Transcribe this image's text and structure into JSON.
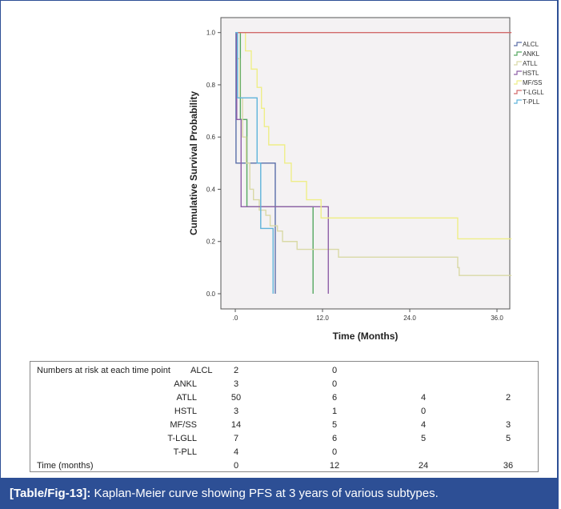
{
  "chart_data": {
    "type": "line",
    "title": "",
    "xlabel": "Time (Months)",
    "ylabel": "Cumulative Survival Probability",
    "xlim": [
      0,
      38
    ],
    "ylim": [
      0,
      1
    ],
    "xticks": [
      ".0",
      "12.0",
      "24.0",
      "36.0"
    ],
    "xtick_values": [
      0,
      12,
      24,
      36
    ],
    "yticks": [
      "0.0",
      "0.2",
      "0.4",
      "0.6",
      "0.8",
      "1.0"
    ],
    "ytick_values": [
      0,
      0.2,
      0.4,
      0.6,
      0.8,
      1.0
    ],
    "legend_position": "right",
    "grid": false,
    "series": [
      {
        "name": "ALCL",
        "color": "#5a6ea8",
        "steps": [
          [
            0,
            1
          ],
          [
            0.1,
            0.5
          ],
          [
            5.5,
            0
          ]
        ]
      },
      {
        "name": "ANKL",
        "color": "#55a860",
        "steps": [
          [
            0,
            1
          ],
          [
            0.7,
            0.667
          ],
          [
            1.6,
            0.333
          ],
          [
            10.7,
            0
          ]
        ]
      },
      {
        "name": "ATLL",
        "color": "#d9d9a6",
        "steps": [
          [
            0,
            1
          ],
          [
            0.3,
            0.9
          ],
          [
            0.6,
            0.75
          ],
          [
            1,
            0.6
          ],
          [
            1.5,
            0.5
          ],
          [
            2,
            0.4
          ],
          [
            2.5,
            0.36
          ],
          [
            3.3,
            0.32
          ],
          [
            4.2,
            0.3
          ],
          [
            4.8,
            0.26
          ],
          [
            5.8,
            0.24
          ],
          [
            6.5,
            0.2
          ],
          [
            8.5,
            0.17
          ],
          [
            14.2,
            0.14
          ],
          [
            30.6,
            0.1
          ],
          [
            30.8,
            0.07
          ],
          [
            38,
            0.07
          ]
        ]
      },
      {
        "name": "HSTL",
        "color": "#8e5fa8",
        "steps": [
          [
            0,
            1
          ],
          [
            0.2,
            0.667
          ],
          [
            0.8,
            0.333
          ],
          [
            12.8,
            0
          ]
        ]
      },
      {
        "name": "MF/SS",
        "color": "#eeee88",
        "steps": [
          [
            0,
            1
          ],
          [
            1.4,
            0.93
          ],
          [
            2.2,
            0.86
          ],
          [
            3,
            0.79
          ],
          [
            3.6,
            0.71
          ],
          [
            4,
            0.64
          ],
          [
            4.6,
            0.57
          ],
          [
            6.8,
            0.5
          ],
          [
            7.7,
            0.43
          ],
          [
            9.8,
            0.36
          ],
          [
            11.8,
            0.29
          ],
          [
            30.6,
            0.21
          ],
          [
            38,
            0.21
          ]
        ]
      },
      {
        "name": "T-LGLL",
        "color": "#d26a6a",
        "steps": [
          [
            0,
            1
          ],
          [
            38,
            1
          ]
        ]
      },
      {
        "name": "T-PLL",
        "color": "#5fb3da",
        "steps": [
          [
            0,
            1
          ],
          [
            0.3,
            0.75
          ],
          [
            3.0,
            0.5
          ],
          [
            3.5,
            0.25
          ],
          [
            5.2,
            0
          ]
        ]
      }
    ]
  },
  "risk_table": {
    "header": "Numbers at risk at each time point",
    "rows": [
      {
        "label": "ALCL",
        "values": [
          "2",
          "0",
          "",
          ""
        ]
      },
      {
        "label": "ANKL",
        "values": [
          "3",
          "0",
          "",
          ""
        ]
      },
      {
        "label": "ATLL",
        "values": [
          "50",
          "6",
          "4",
          "2"
        ]
      },
      {
        "label": "HSTL",
        "values": [
          "3",
          "1",
          "0",
          ""
        ]
      },
      {
        "label": "MF/SS",
        "values": [
          "14",
          "5",
          "4",
          "3"
        ]
      },
      {
        "label": "T-LGLL",
        "values": [
          "7",
          "6",
          "5",
          "5"
        ]
      },
      {
        "label": "T-PLL",
        "values": [
          "4",
          "0",
          "",
          ""
        ]
      }
    ],
    "time_label": "Time (months)",
    "times": [
      "0",
      "12",
      "24",
      "36"
    ]
  },
  "caption": {
    "tag": "[Table/Fig-13]:",
    "text": " Kaplan-Meier curve showing PFS at 3 years of various subtypes."
  }
}
